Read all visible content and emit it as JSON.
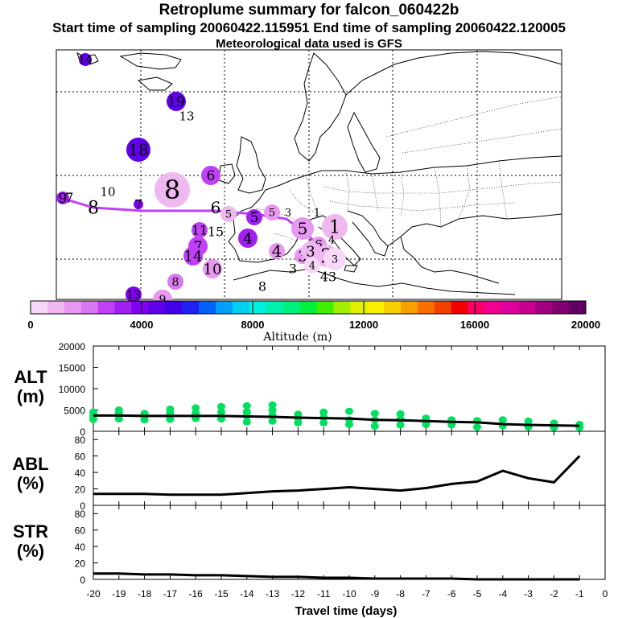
{
  "header": {
    "title": "Retroplume summary for falcon_060422b",
    "sampling_line": "Start time of sampling 20060422.115951     End time of sampling 20060422.120005",
    "met_line": "Meteorological data used is GFS"
  },
  "colorbar": {
    "label": "Altitude (m)",
    "ticks": [
      "0",
      "4000",
      "8000",
      "12000",
      "16000",
      "20000"
    ],
    "colors": [
      "#f8d8f8",
      "#f0b8f0",
      "#e898f0",
      "#d878f0",
      "#c040f8",
      "#a020f0",
      "#8000f0",
      "#6000e8",
      "#4000e8",
      "#2020f0",
      "#0060f8",
      "#00a0f8",
      "#00d0f0",
      "#00f0e0",
      "#00f0b0",
      "#00f080",
      "#00f040",
      "#40f000",
      "#a0f000",
      "#e0f000",
      "#f8f000",
      "#f8d000",
      "#f8a000",
      "#f87000",
      "#f04000",
      "#f00000",
      "#f8006a",
      "#f00090",
      "#e000a0",
      "#c80090",
      "#a00080",
      "#800070",
      "#600060"
    ]
  },
  "map": {
    "markers": [
      {
        "label": "14",
        "color": "#6000e8"
      },
      {
        "label": "19",
        "color": "#6000e8"
      },
      {
        "label": "13",
        "color": "#8000f0"
      },
      {
        "label": "18",
        "color": "#6000e8"
      },
      {
        "label": "6",
        "color": "#c040f8"
      },
      {
        "label": "8",
        "color": "#f0b8f0"
      },
      {
        "label": "10",
        "color": "#f8d8f8"
      },
      {
        "label": "9",
        "color": "#a020f0"
      },
      {
        "label": "7",
        "color": "#a020f0"
      },
      {
        "label": "8",
        "color": "#f8d8f8"
      },
      {
        "label": "7",
        "color": "#8000f0"
      },
      {
        "label": "6",
        "color": "#e898f0"
      },
      {
        "label": "5",
        "color": "#f0b8f0"
      },
      {
        "label": "5",
        "color": "#a020f0"
      },
      {
        "label": "5",
        "color": "#e898f0"
      },
      {
        "label": "3",
        "color": "#f8d8f8"
      },
      {
        "label": "1",
        "color": "#f8d8f8"
      },
      {
        "label": "5",
        "color": "#e898f0"
      },
      {
        "label": "1",
        "color": "#f0b8f0"
      },
      {
        "label": "4",
        "color": "#f0b8f0"
      },
      {
        "label": "11",
        "color": "#c040f8"
      },
      {
        "label": "15",
        "color": "#d878f0"
      },
      {
        "label": "4",
        "color": "#a020f0"
      },
      {
        "label": "7",
        "color": "#c040f8"
      },
      {
        "label": "4",
        "color": "#e898f0"
      },
      {
        "label": "3",
        "color": "#e898f0"
      },
      {
        "label": "6",
        "color": "#e898f0"
      },
      {
        "label": "3",
        "color": "#f0b8f0"
      },
      {
        "label": "2",
        "color": "#f0b8f0"
      },
      {
        "label": "14",
        "color": "#c040f8"
      },
      {
        "label": "10",
        "color": "#e898f0"
      },
      {
        "label": "3",
        "color": "#e898f0"
      },
      {
        "label": "4",
        "color": "#f8d8f8"
      },
      {
        "label": "3",
        "color": "#f8d8f8"
      },
      {
        "label": "43",
        "color": "#f0b8f0"
      },
      {
        "label": "8",
        "color": "#d878f0"
      },
      {
        "label": "8",
        "color": "#ffffff"
      },
      {
        "label": "13",
        "color": "#8000f0"
      },
      {
        "label": "9",
        "color": "#e898f0"
      }
    ]
  },
  "chart_data": [
    {
      "type": "line",
      "title": "ALT (m)",
      "xlabel": "Travel time (days)",
      "ylabel": "ALT (m)",
      "x": [
        -20,
        -19,
        -18,
        -17,
        -16,
        -15,
        -14,
        -13,
        -12,
        -11,
        -10,
        -9,
        -8,
        -7,
        -6,
        -5,
        -4,
        -3,
        -2,
        -1
      ],
      "values": [
        3700,
        3700,
        3600,
        3600,
        3600,
        3600,
        3500,
        3400,
        3200,
        3100,
        3000,
        2700,
        2600,
        2400,
        2200,
        2100,
        1700,
        1500,
        1400,
        1300
      ],
      "xlim": [
        -20,
        0
      ],
      "ylim": [
        0,
        20000
      ],
      "yticks": [
        0,
        5000,
        10000,
        15000,
        20000
      ],
      "scatter_color": "#00e060",
      "scatter_points": [
        [
          -20,
          4500
        ],
        [
          -20,
          2800
        ],
        [
          -20,
          3600
        ],
        [
          -19,
          4200
        ],
        [
          -19,
          2900
        ],
        [
          -19,
          5000
        ],
        [
          -18,
          4200
        ],
        [
          -18,
          2700
        ],
        [
          -18,
          3500
        ],
        [
          -17,
          4300
        ],
        [
          -17,
          2800
        ],
        [
          -17,
          5200
        ],
        [
          -16,
          4300
        ],
        [
          -16,
          3000
        ],
        [
          -16,
          5500
        ],
        [
          -15,
          4500
        ],
        [
          -15,
          2900
        ],
        [
          -15,
          5800
        ],
        [
          -14,
          3600
        ],
        [
          -14,
          2200
        ],
        [
          -14,
          4600
        ],
        [
          -14,
          6000
        ],
        [
          -13,
          3800
        ],
        [
          -13,
          2400
        ],
        [
          -13,
          5000
        ],
        [
          -13,
          6200
        ],
        [
          -12,
          4000
        ],
        [
          -12,
          2000
        ],
        [
          -12,
          3100
        ],
        [
          -11,
          4500
        ],
        [
          -11,
          2000
        ],
        [
          -11,
          3300
        ],
        [
          -10,
          4700
        ],
        [
          -10,
          1600
        ],
        [
          -10,
          2700
        ],
        [
          -9,
          4200
        ],
        [
          -9,
          1200
        ],
        [
          -9,
          2700
        ],
        [
          -8,
          4100
        ],
        [
          -8,
          1500
        ],
        [
          -8,
          2900
        ],
        [
          -7,
          3100
        ],
        [
          -7,
          1600
        ],
        [
          -7,
          2300
        ],
        [
          -6,
          2700
        ],
        [
          -6,
          1500
        ],
        [
          -5,
          2500
        ],
        [
          -5,
          1000
        ],
        [
          -4,
          2700
        ],
        [
          -4,
          1300
        ],
        [
          -3,
          2400
        ],
        [
          -3,
          1000
        ],
        [
          -2,
          1900
        ],
        [
          -2,
          900
        ],
        [
          -1,
          1600
        ],
        [
          -1,
          900
        ]
      ]
    },
    {
      "type": "line",
      "title": "ABL (%)",
      "ylabel": "ABL (%)",
      "x": [
        -20,
        -19,
        -18,
        -17,
        -16,
        -15,
        -14,
        -13,
        -12,
        -11,
        -10,
        -9,
        -8,
        -7,
        -6,
        -5,
        -4,
        -3,
        -2,
        -1
      ],
      "values": [
        14,
        14,
        14,
        13,
        13,
        13,
        15,
        17,
        18,
        20,
        22,
        20,
        18,
        21,
        26,
        29,
        42,
        33,
        28,
        60
      ],
      "xlim": [
        -20,
        0
      ],
      "ylim": [
        0,
        90
      ],
      "yticks": [
        0,
        20,
        40,
        60,
        80
      ]
    },
    {
      "type": "line",
      "title": "STR (%)",
      "ylabel": "STR (%)",
      "x": [
        -20,
        -19,
        -18,
        -17,
        -16,
        -15,
        -14,
        -13,
        -12,
        -11,
        -10,
        -9,
        -8,
        -7,
        -6,
        -5,
        -4,
        -3,
        -2,
        -1
      ],
      "values": [
        7,
        7,
        6,
        6,
        5,
        5,
        4,
        3,
        3,
        2,
        2,
        1,
        1,
        1,
        1,
        0,
        0,
        0,
        0,
        0
      ],
      "xlim": [
        -20,
        0
      ],
      "ylim": [
        0,
        90
      ],
      "yticks": [
        0,
        20,
        40,
        60,
        80
      ],
      "xticks": [
        "-20",
        "-19",
        "-18",
        "-17",
        "-16",
        "-15",
        "-14",
        "-13",
        "-12",
        "-11",
        "-10",
        "-9",
        "-8",
        "-7",
        "-6",
        "-5",
        "-4",
        "-3",
        "-2",
        "-1",
        "0"
      ]
    }
  ],
  "panels": {
    "alt_label": "ALT",
    "alt_unit": "(m)",
    "abl_label": "ABL",
    "abl_unit": "(%)",
    "str_label": "STR",
    "str_unit": "(%)"
  }
}
